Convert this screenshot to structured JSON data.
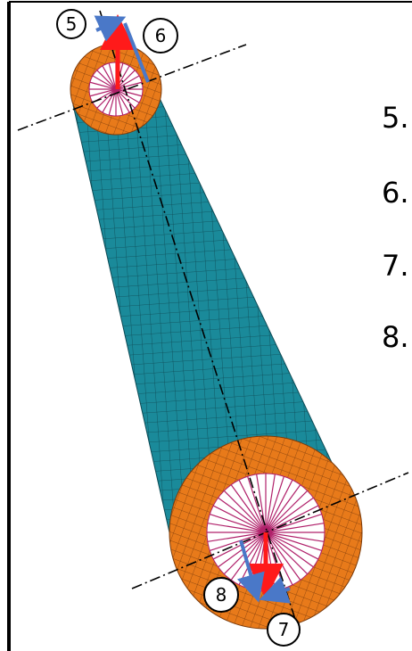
{
  "labels": {
    "circled": [
      "5",
      "6",
      "7",
      "8"
    ],
    "list": [
      "5.",
      "6.",
      "7.",
      "8."
    ]
  }
}
